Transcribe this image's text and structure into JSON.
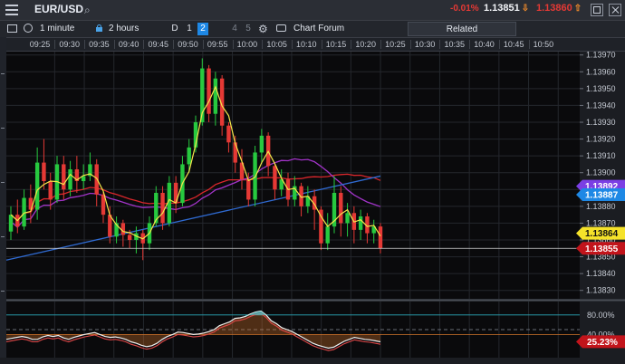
{
  "header": {
    "symbol": "EUR/USD",
    "change": "-0.01%",
    "bid": "1.13851",
    "ask": "1.13860",
    "colors": {
      "up": "#27c93f",
      "down": "#e53935",
      "accent": "#1e88e5",
      "ask": "#e53935"
    }
  },
  "toolbar": {
    "period": "1 minute",
    "range": "2 hours",
    "zoom_options": [
      "D",
      "1",
      "2",
      "4",
      "5"
    ],
    "zoom_selected": "2",
    "chart_forum": "Chart Forum",
    "related": "Related"
  },
  "time_axis": [
    "09:25",
    "09:30",
    "09:35",
    "09:40",
    "09:45",
    "09:50",
    "09:55",
    "10:00",
    "10:05",
    "10:10",
    "10:15",
    "10:20",
    "10:25",
    "10:30",
    "10:35",
    "10:40",
    "10:45",
    "10:50"
  ],
  "price_axis": [
    "1.13970",
    "1.13960",
    "1.13950",
    "1.13940",
    "1.13930",
    "1.13920",
    "1.13910",
    "1.13900",
    "1.13890",
    "1.13880",
    "1.13870",
    "1.13860",
    "1.13850",
    "1.13840",
    "1.13830"
  ],
  "price_tags": [
    {
      "value": "1.13892",
      "color": "#7b3fe4"
    },
    {
      "value": "1.13887",
      "color": "#1e88e5"
    },
    {
      "value": "1.13864",
      "color": "#f5e22a"
    },
    {
      "value": "1.13855",
      "color": "#c2141b"
    }
  ],
  "oscillator": {
    "levels": [
      "80.00%",
      "40.00%"
    ],
    "current": "25.23%"
  },
  "chart_data": {
    "type": "candlestick",
    "y_range": [
      1.13825,
      1.13972
    ],
    "candles": [
      {
        "o": 1.13865,
        "c": 1.13875,
        "h": 1.1388,
        "l": 1.1386
      },
      {
        "o": 1.13875,
        "c": 1.13868,
        "h": 1.13884,
        "l": 1.13864
      },
      {
        "o": 1.13868,
        "c": 1.13885,
        "h": 1.1389,
        "l": 1.13866
      },
      {
        "o": 1.13885,
        "c": 1.13878,
        "h": 1.13893,
        "l": 1.1387
      },
      {
        "o": 1.13878,
        "c": 1.13906,
        "h": 1.13915,
        "l": 1.13872
      },
      {
        "o": 1.13906,
        "c": 1.13895,
        "h": 1.1392,
        "l": 1.1389
      },
      {
        "o": 1.13895,
        "c": 1.13884,
        "h": 1.139,
        "l": 1.13878
      },
      {
        "o": 1.13884,
        "c": 1.13905,
        "h": 1.1391,
        "l": 1.13882
      },
      {
        "o": 1.13905,
        "c": 1.1389,
        "h": 1.1391,
        "l": 1.13884
      },
      {
        "o": 1.1389,
        "c": 1.13902,
        "h": 1.13907,
        "l": 1.13886
      },
      {
        "o": 1.13902,
        "c": 1.13895,
        "h": 1.1391,
        "l": 1.13888
      },
      {
        "o": 1.13895,
        "c": 1.13898,
        "h": 1.13905,
        "l": 1.1389
      },
      {
        "o": 1.13898,
        "c": 1.13905,
        "h": 1.13912,
        "l": 1.13895
      },
      {
        "o": 1.13905,
        "c": 1.13887,
        "h": 1.13908,
        "l": 1.1388
      },
      {
        "o": 1.13887,
        "c": 1.13875,
        "h": 1.1389,
        "l": 1.1387
      },
      {
        "o": 1.13875,
        "c": 1.13862,
        "h": 1.1388,
        "l": 1.13858
      },
      {
        "o": 1.13862,
        "c": 1.1387,
        "h": 1.13874,
        "l": 1.13858
      },
      {
        "o": 1.1387,
        "c": 1.13863,
        "h": 1.13872,
        "l": 1.13856
      },
      {
        "o": 1.13863,
        "c": 1.1386,
        "h": 1.13866,
        "l": 1.13855
      },
      {
        "o": 1.1386,
        "c": 1.13864,
        "h": 1.13868,
        "l": 1.13852
      },
      {
        "o": 1.13864,
        "c": 1.13858,
        "h": 1.13866,
        "l": 1.13848
      },
      {
        "o": 1.13858,
        "c": 1.1387,
        "h": 1.13874,
        "l": 1.13854
      },
      {
        "o": 1.1387,
        "c": 1.13888,
        "h": 1.13892,
        "l": 1.13868
      },
      {
        "o": 1.13888,
        "c": 1.1387,
        "h": 1.13892,
        "l": 1.13866
      },
      {
        "o": 1.1387,
        "c": 1.13894,
        "h": 1.13898,
        "l": 1.13868
      },
      {
        "o": 1.13894,
        "c": 1.13882,
        "h": 1.13898,
        "l": 1.13876
      },
      {
        "o": 1.13882,
        "c": 1.13905,
        "h": 1.1391,
        "l": 1.1388
      },
      {
        "o": 1.13905,
        "c": 1.13915,
        "h": 1.1392,
        "l": 1.139
      },
      {
        "o": 1.13915,
        "c": 1.1393,
        "h": 1.13934,
        "l": 1.13912
      },
      {
        "o": 1.1393,
        "c": 1.13962,
        "h": 1.13968,
        "l": 1.13928
      },
      {
        "o": 1.13962,
        "c": 1.13935,
        "h": 1.13964,
        "l": 1.1393
      },
      {
        "o": 1.13935,
        "c": 1.13956,
        "h": 1.1396,
        "l": 1.13928
      },
      {
        "o": 1.13956,
        "c": 1.13928,
        "h": 1.13958,
        "l": 1.13922
      },
      {
        "o": 1.13928,
        "c": 1.13918,
        "h": 1.1393,
        "l": 1.13912
      },
      {
        "o": 1.13918,
        "c": 1.13906,
        "h": 1.13922,
        "l": 1.139
      },
      {
        "o": 1.13906,
        "c": 1.13896,
        "h": 1.13914,
        "l": 1.1389
      },
      {
        "o": 1.13896,
        "c": 1.13884,
        "h": 1.139,
        "l": 1.1388
      },
      {
        "o": 1.13884,
        "c": 1.13912,
        "h": 1.13916,
        "l": 1.1388
      },
      {
        "o": 1.13912,
        "c": 1.13922,
        "h": 1.13926,
        "l": 1.13906
      },
      {
        "o": 1.13922,
        "c": 1.13904,
        "h": 1.13924,
        "l": 1.13898
      },
      {
        "o": 1.13904,
        "c": 1.1389,
        "h": 1.13906,
        "l": 1.13884
      },
      {
        "o": 1.1389,
        "c": 1.13896,
        "h": 1.13902,
        "l": 1.13886
      },
      {
        "o": 1.13896,
        "c": 1.13884,
        "h": 1.139,
        "l": 1.1388
      },
      {
        "o": 1.13884,
        "c": 1.13892,
        "h": 1.13898,
        "l": 1.1388
      },
      {
        "o": 1.13892,
        "c": 1.1388,
        "h": 1.13894,
        "l": 1.13874
      },
      {
        "o": 1.1388,
        "c": 1.13886,
        "h": 1.13892,
        "l": 1.13876
      },
      {
        "o": 1.13886,
        "c": 1.13878,
        "h": 1.1389,
        "l": 1.13866
      },
      {
        "o": 1.13878,
        "c": 1.13858,
        "h": 1.1388,
        "l": 1.13854
      },
      {
        "o": 1.13858,
        "c": 1.13868,
        "h": 1.13876,
        "l": 1.13854
      },
      {
        "o": 1.13868,
        "c": 1.13888,
        "h": 1.13898,
        "l": 1.13864
      },
      {
        "o": 1.13888,
        "c": 1.1387,
        "h": 1.13892,
        "l": 1.13862
      },
      {
        "o": 1.1387,
        "c": 1.13876,
        "h": 1.13882,
        "l": 1.13862
      },
      {
        "o": 1.13876,
        "c": 1.13866,
        "h": 1.1388,
        "l": 1.13858
      },
      {
        "o": 1.13866,
        "c": 1.13874,
        "h": 1.13878,
        "l": 1.1386
      },
      {
        "o": 1.13874,
        "c": 1.13864,
        "h": 1.13876,
        "l": 1.13858
      },
      {
        "o": 1.13864,
        "c": 1.13868,
        "h": 1.13872,
        "l": 1.13858
      },
      {
        "o": 1.13868,
        "c": 1.13855,
        "h": 1.1387,
        "l": 1.13852
      }
    ],
    "oscillator_values": [
      30,
      32,
      34,
      36,
      34,
      30,
      30,
      35,
      38,
      36,
      38,
      33,
      30,
      34,
      37,
      40,
      42,
      44,
      40,
      36,
      34,
      35,
      33,
      30,
      25,
      22,
      18,
      15,
      17,
      22,
      30,
      36,
      40,
      45,
      44,
      42,
      40,
      41,
      43,
      46,
      50,
      58,
      62,
      66,
      73,
      74,
      77,
      82,
      86,
      88,
      80,
      68,
      62,
      54,
      50,
      46,
      40,
      34,
      28,
      22,
      18,
      15,
      12,
      14,
      20,
      26,
      30,
      34,
      32,
      30,
      29,
      27,
      25
    ]
  }
}
